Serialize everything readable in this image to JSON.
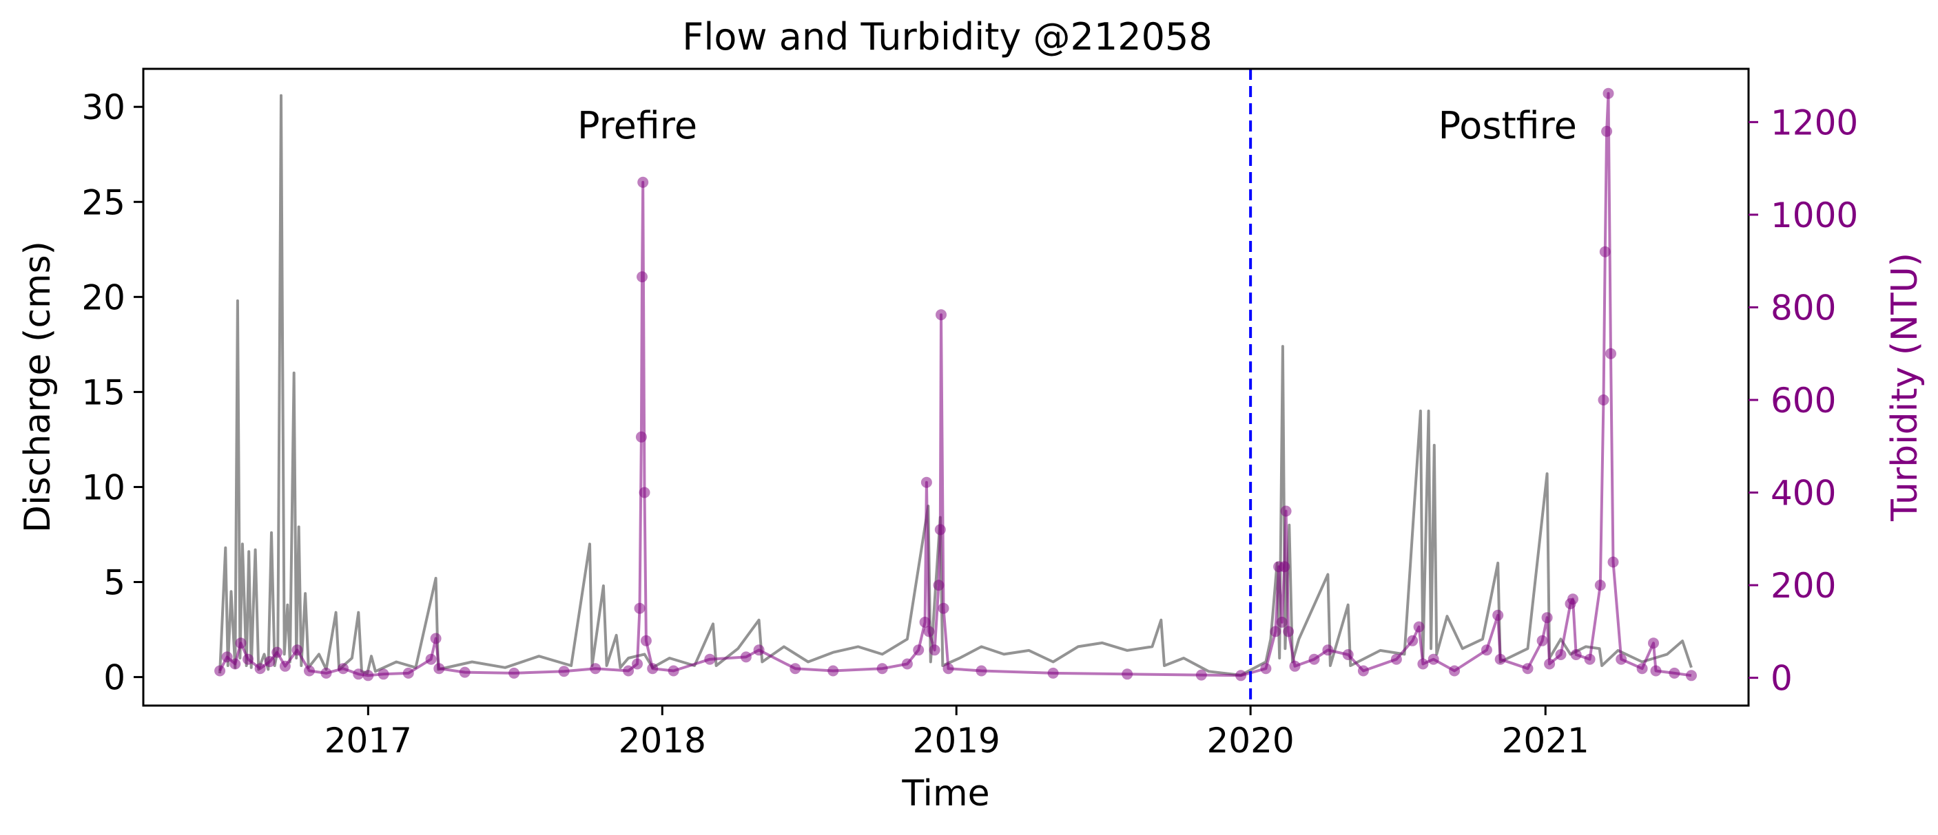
{
  "chart_data": {
    "type": "line",
    "title": "Flow and Turbidity @212058",
    "xlabel": "Time",
    "ylabel": "Discharge (cms)",
    "ylabel_right": "Turbidity (NTU)",
    "xlim": [
      "2016-03-28",
      "2021-09-10"
    ],
    "ylim": [
      -1.5,
      32
    ],
    "ylim_right": [
      -60,
      1315
    ],
    "x_ticks": [
      "2017",
      "2018",
      "2019",
      "2020",
      "2021"
    ],
    "y_ticks": [
      "0",
      "5",
      "10",
      "15",
      "20",
      "25",
      "30"
    ],
    "y_ticks_right": [
      "0",
      "200",
      "400",
      "600",
      "800",
      "1000",
      "1200"
    ],
    "grid": false,
    "legend": "none",
    "annotations": [
      {
        "text": "Prefire",
        "x": "2017-12-01",
        "y": 29
      },
      {
        "text": "Postfire",
        "x": "2020-11-15",
        "y": 29
      }
    ],
    "vline": {
      "x": "2020-01-01",
      "color": "#0000ff",
      "style": "dashed"
    },
    "colors": {
      "discharge": "#808080",
      "turbidity": "#800080",
      "vline": "#0000ff",
      "right_axis": "#800080"
    },
    "series": [
      {
        "axis": "left",
        "style": "line",
        "points": [
          [
            "2016-07-01",
            0.2
          ],
          [
            "2016-07-08",
            6.8
          ],
          [
            "2016-07-11",
            0.6
          ],
          [
            "2016-07-15",
            4.5
          ],
          [
            "2016-07-20",
            0.5
          ],
          [
            "2016-07-23",
            19.8
          ],
          [
            "2016-07-26",
            1.0
          ],
          [
            "2016-07-29",
            7.0
          ],
          [
            "2016-08-03",
            0.6
          ],
          [
            "2016-08-06",
            6.6
          ],
          [
            "2016-08-09",
            0.5
          ],
          [
            "2016-08-14",
            6.7
          ],
          [
            "2016-08-18",
            0.4
          ],
          [
            "2016-08-25",
            1.2
          ],
          [
            "2016-08-30",
            0.4
          ],
          [
            "2016-09-03",
            7.6
          ],
          [
            "2016-09-07",
            0.6
          ],
          [
            "2016-09-11",
            1.5
          ],
          [
            "2016-09-15",
            30.6
          ],
          [
            "2016-09-19",
            1.2
          ],
          [
            "2016-09-23",
            3.8
          ],
          [
            "2016-09-26",
            0.8
          ],
          [
            "2016-10-01",
            16.0
          ],
          [
            "2016-10-04",
            1.0
          ],
          [
            "2016-10-07",
            7.9
          ],
          [
            "2016-10-10",
            0.6
          ],
          [
            "2016-10-15",
            4.4
          ],
          [
            "2016-10-19",
            0.5
          ],
          [
            "2016-11-01",
            1.2
          ],
          [
            "2016-11-10",
            0.4
          ],
          [
            "2016-11-22",
            3.4
          ],
          [
            "2016-11-26",
            0.4
          ],
          [
            "2016-12-12",
            1.0
          ],
          [
            "2016-12-20",
            3.4
          ],
          [
            "2016-12-24",
            0.3
          ],
          [
            "2016-12-31",
            0.2
          ],
          [
            "2017-01-05",
            1.1
          ],
          [
            "2017-01-10",
            0.3
          ],
          [
            "2017-02-05",
            0.8
          ],
          [
            "2017-03-01",
            0.5
          ],
          [
            "2017-03-26",
            5.2
          ],
          [
            "2017-03-29",
            0.4
          ],
          [
            "2017-05-10",
            0.8
          ],
          [
            "2017-06-20",
            0.5
          ],
          [
            "2017-08-01",
            1.1
          ],
          [
            "2017-09-10",
            0.6
          ],
          [
            "2017-10-03",
            7.0
          ],
          [
            "2017-10-06",
            0.6
          ],
          [
            "2017-10-20",
            4.8
          ],
          [
            "2017-10-24",
            0.6
          ],
          [
            "2017-11-05",
            2.2
          ],
          [
            "2017-11-10",
            0.5
          ],
          [
            "2017-11-20",
            1.0
          ],
          [
            "2017-12-10",
            1.2
          ],
          [
            "2017-12-20",
            0.5
          ],
          [
            "2018-01-10",
            1.0
          ],
          [
            "2018-02-10",
            0.6
          ],
          [
            "2018-03-05",
            2.8
          ],
          [
            "2018-03-09",
            0.6
          ],
          [
            "2018-04-05",
            1.5
          ],
          [
            "2018-05-01",
            3.0
          ],
          [
            "2018-05-05",
            0.8
          ],
          [
            "2018-06-01",
            1.6
          ],
          [
            "2018-07-01",
            0.8
          ],
          [
            "2018-08-01",
            1.3
          ],
          [
            "2018-09-01",
            1.6
          ],
          [
            "2018-10-01",
            1.2
          ],
          [
            "2018-11-01",
            2.0
          ],
          [
            "2018-11-27",
            9.0
          ],
          [
            "2018-11-30",
            0.8
          ],
          [
            "2018-12-12",
            8.4
          ],
          [
            "2018-12-15",
            0.6
          ],
          [
            "2019-01-05",
            1.0
          ],
          [
            "2019-02-01",
            1.6
          ],
          [
            "2019-03-01",
            1.2
          ],
          [
            "2019-04-01",
            1.4
          ],
          [
            "2019-05-01",
            0.8
          ],
          [
            "2019-06-01",
            1.6
          ],
          [
            "2019-07-01",
            1.8
          ],
          [
            "2019-08-01",
            1.4
          ],
          [
            "2019-09-01",
            1.6
          ],
          [
            "2019-09-12",
            3.0
          ],
          [
            "2019-09-16",
            0.6
          ],
          [
            "2019-10-10",
            1.0
          ],
          [
            "2019-11-10",
            0.3
          ],
          [
            "2019-12-20",
            0.1
          ],
          [
            "2020-01-20",
            0.8
          ],
          [
            "2020-01-26",
            2.0
          ],
          [
            "2020-02-03",
            6.0
          ],
          [
            "2020-02-06",
            1.0
          ],
          [
            "2020-02-10",
            17.4
          ],
          [
            "2020-02-13",
            1.5
          ],
          [
            "2020-02-18",
            8.0
          ],
          [
            "2020-02-22",
            0.8
          ],
          [
            "2020-03-01",
            2.0
          ],
          [
            "2020-04-06",
            5.4
          ],
          [
            "2020-04-09",
            0.6
          ],
          [
            "2020-05-01",
            3.8
          ],
          [
            "2020-05-04",
            0.6
          ],
          [
            "2020-06-10",
            1.4
          ],
          [
            "2020-07-10",
            1.2
          ],
          [
            "2020-07-30",
            14.0
          ],
          [
            "2020-08-02",
            1.0
          ],
          [
            "2020-08-09",
            14.0
          ],
          [
            "2020-08-12",
            1.5
          ],
          [
            "2020-08-16",
            12.2
          ],
          [
            "2020-08-19",
            1.2
          ],
          [
            "2020-09-01",
            3.2
          ],
          [
            "2020-09-20",
            1.5
          ],
          [
            "2020-10-15",
            2.0
          ],
          [
            "2020-11-03",
            6.0
          ],
          [
            "2020-11-06",
            0.8
          ],
          [
            "2020-12-10",
            1.5
          ],
          [
            "2021-01-03",
            10.7
          ],
          [
            "2021-01-06",
            1.0
          ],
          [
            "2021-01-20",
            2.0
          ],
          [
            "2021-02-01",
            1.2
          ],
          [
            "2021-02-20",
            1.6
          ],
          [
            "2021-03-09",
            1.5
          ],
          [
            "2021-03-12",
            0.6
          ],
          [
            "2021-04-01",
            1.4
          ],
          [
            "2021-05-01",
            0.8
          ],
          [
            "2021-06-01",
            1.2
          ],
          [
            "2021-06-20",
            1.9
          ],
          [
            "2021-07-01",
            0.5
          ]
        ]
      },
      {
        "axis": "right",
        "style": "line+markers",
        "points": [
          [
            "2016-07-01",
            15
          ],
          [
            "2016-07-10",
            45
          ],
          [
            "2016-07-20",
            30
          ],
          [
            "2016-07-27",
            75
          ],
          [
            "2016-08-05",
            40
          ],
          [
            "2016-08-20",
            20
          ],
          [
            "2016-09-01",
            35
          ],
          [
            "2016-09-10",
            55
          ],
          [
            "2016-09-20",
            25
          ],
          [
            "2016-10-05",
            60
          ],
          [
            "2016-10-20",
            15
          ],
          [
            "2016-11-10",
            10
          ],
          [
            "2016-12-01",
            20
          ],
          [
            "2016-12-20",
            8
          ],
          [
            "2017-01-01",
            5
          ],
          [
            "2017-01-20",
            8
          ],
          [
            "2017-02-20",
            10
          ],
          [
            "2017-03-20",
            40
          ],
          [
            "2017-03-26",
            85
          ],
          [
            "2017-03-30",
            20
          ],
          [
            "2017-05-01",
            12
          ],
          [
            "2017-07-01",
            10
          ],
          [
            "2017-09-01",
            14
          ],
          [
            "2017-10-10",
            20
          ],
          [
            "2017-11-20",
            15
          ],
          [
            "2017-12-01",
            30
          ],
          [
            "2017-12-04",
            150
          ],
          [
            "2017-12-06",
            520
          ],
          [
            "2017-12-07",
            866
          ],
          [
            "2017-12-08",
            1070
          ],
          [
            "2017-12-10",
            400
          ],
          [
            "2017-12-12",
            80
          ],
          [
            "2017-12-20",
            20
          ],
          [
            "2018-01-15",
            15
          ],
          [
            "2018-03-01",
            40
          ],
          [
            "2018-04-15",
            45
          ],
          [
            "2018-05-01",
            60
          ],
          [
            "2018-06-15",
            20
          ],
          [
            "2018-08-01",
            15
          ],
          [
            "2018-10-01",
            20
          ],
          [
            "2018-11-01",
            30
          ],
          [
            "2018-11-15",
            60
          ],
          [
            "2018-11-23",
            120
          ],
          [
            "2018-11-25",
            422
          ],
          [
            "2018-11-28",
            100
          ],
          [
            "2018-12-05",
            60
          ],
          [
            "2018-12-10",
            200
          ],
          [
            "2018-12-12",
            320
          ],
          [
            "2018-12-13",
            784
          ],
          [
            "2018-12-16",
            150
          ],
          [
            "2018-12-22",
            20
          ],
          [
            "2019-02-01",
            15
          ],
          [
            "2019-05-01",
            10
          ],
          [
            "2019-08-01",
            8
          ],
          [
            "2019-11-01",
            6
          ],
          [
            "2019-12-20",
            5
          ],
          [
            "2020-01-20",
            20
          ],
          [
            "2020-02-01",
            100
          ],
          [
            "2020-02-05",
            240
          ],
          [
            "2020-02-09",
            120
          ],
          [
            "2020-02-12",
            240
          ],
          [
            "2020-02-14",
            360
          ],
          [
            "2020-02-17",
            100
          ],
          [
            "2020-02-25",
            25
          ],
          [
            "2020-03-20",
            40
          ],
          [
            "2020-04-06",
            60
          ],
          [
            "2020-05-01",
            50
          ],
          [
            "2020-05-20",
            15
          ],
          [
            "2020-06-30",
            40
          ],
          [
            "2020-07-20",
            80
          ],
          [
            "2020-07-28",
            110
          ],
          [
            "2020-08-02",
            30
          ],
          [
            "2020-08-15",
            40
          ],
          [
            "2020-09-10",
            15
          ],
          [
            "2020-10-20",
            60
          ],
          [
            "2020-11-03",
            135
          ],
          [
            "2020-11-06",
            40
          ],
          [
            "2020-12-10",
            20
          ],
          [
            "2020-12-28",
            80
          ],
          [
            "2021-01-03",
            130
          ],
          [
            "2021-01-06",
            30
          ],
          [
            "2021-01-20",
            50
          ],
          [
            "2021-02-01",
            160
          ],
          [
            "2021-02-04",
            170
          ],
          [
            "2021-02-08",
            50
          ],
          [
            "2021-02-25",
            40
          ],
          [
            "2021-03-10",
            200
          ],
          [
            "2021-03-14",
            600
          ],
          [
            "2021-03-16",
            920
          ],
          [
            "2021-03-18",
            1180
          ],
          [
            "2021-03-20",
            1262
          ],
          [
            "2021-03-23",
            700
          ],
          [
            "2021-03-26",
            250
          ],
          [
            "2021-04-05",
            40
          ],
          [
            "2021-05-01",
            20
          ],
          [
            "2021-05-15",
            75
          ],
          [
            "2021-05-18",
            15
          ],
          [
            "2021-06-10",
            10
          ],
          [
            "2021-07-01",
            5
          ]
        ]
      }
    ]
  }
}
